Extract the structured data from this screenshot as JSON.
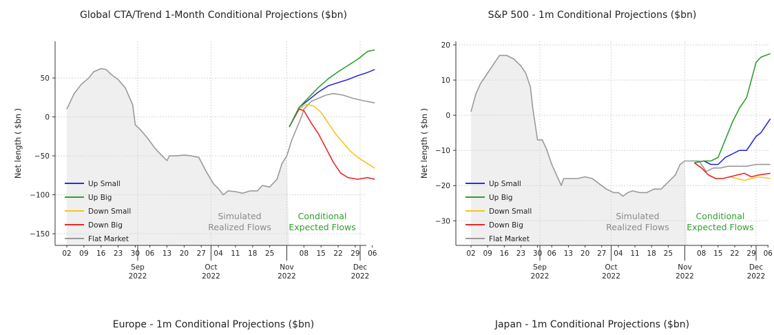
{
  "page": {
    "titles": [
      "Global CTA/Trend 1-Month Conditional Projections ($bn)",
      "S&P 500 - 1m Conditional Projections ($bn)",
      "Europe - 1m Conditional Projections ($bn)",
      "Japan - 1m Conditional Projections ($bn)"
    ]
  },
  "chart_data": [
    {
      "type": "line",
      "title": "Global CTA/Trend 1-Month Conditional Projections ($bn)",
      "ylabel": "Net length ( $bn )",
      "xlabel": "",
      "ylim": [
        -165,
        97
      ],
      "yticks": [
        50,
        0,
        -50,
        -100,
        -150
      ],
      "ytick_labels": [
        "50",
        "0",
        "−50",
        "−100",
        "−150"
      ],
      "x_day_range": [
        0,
        37
      ],
      "day_ticks": [
        {
          "day": 0,
          "label": "02"
        },
        {
          "day": 7,
          "label": "09"
        },
        {
          "day": 14,
          "label": "16"
        },
        {
          "day": 21,
          "label": "23"
        },
        {
          "day": 28,
          "label": "30"
        },
        {
          "day": 34,
          "label": "06"
        },
        {
          "day": 41,
          "label": "13"
        },
        {
          "day": 48,
          "label": "20"
        },
        {
          "day": 55,
          "label": "27"
        },
        {
          "day": 62,
          "label": "04"
        },
        {
          "day": 69,
          "label": "11"
        },
        {
          "day": 76,
          "label": "18"
        },
        {
          "day": 83,
          "label": "25"
        },
        {
          "day": 97,
          "label": "08"
        },
        {
          "day": 104,
          "label": "15"
        },
        {
          "day": 111,
          "label": "22"
        },
        {
          "day": 118,
          "label": "29"
        },
        {
          "day": 125,
          "label": "06"
        }
      ],
      "month_ticks": [
        {
          "day": 29,
          "label": "Sep",
          "year": "2022"
        },
        {
          "day": 59,
          "label": "Oct",
          "year": "2022"
        },
        {
          "day": 90,
          "label": "Nov",
          "year": "2022"
        },
        {
          "day": 120,
          "label": "Dec",
          "year": "2022"
        }
      ],
      "grid": true,
      "legend_position": "lower-left",
      "annotations": [
        {
          "lines": [
            "Simulated",
            "Realized Flows"
          ],
          "color": "grey"
        },
        {
          "lines": [
            "Conditional",
            "Expected Flows"
          ],
          "color": "green"
        }
      ],
      "realized_until_day": 91,
      "series": [
        {
          "name": "Up Small",
          "color": "#2b2bdd",
          "points": [
            [
              91,
              -13
            ],
            [
              95,
              12
            ],
            [
              99,
              22
            ],
            [
              103,
              32
            ],
            [
              107,
              40
            ],
            [
              111,
              44
            ],
            [
              115,
              48
            ],
            [
              119,
              53
            ],
            [
              123,
              57
            ],
            [
              126,
              61
            ]
          ]
        },
        {
          "name": "Up Big",
          "color": "#2ca02c",
          "points": [
            [
              91,
              -13
            ],
            [
              95,
              12
            ],
            [
              99,
              25
            ],
            [
              103,
              38
            ],
            [
              107,
              49
            ],
            [
              111,
              58
            ],
            [
              115,
              66
            ],
            [
              119,
              74
            ],
            [
              123,
              84
            ],
            [
              126,
              86
            ]
          ]
        },
        {
          "name": "Down Small",
          "color": "#f5c518",
          "points": [
            [
              91,
              -13
            ],
            [
              95,
              10
            ],
            [
              98,
              16
            ],
            [
              101,
              14
            ],
            [
              104,
              6
            ],
            [
              107,
              -8
            ],
            [
              110,
              -22
            ],
            [
              113,
              -33
            ],
            [
              116,
              -44
            ],
            [
              119,
              -52
            ],
            [
              122,
              -58
            ],
            [
              126,
              -66
            ]
          ]
        },
        {
          "name": "Down Big",
          "color": "#e8262b",
          "points": [
            [
              91,
              -13
            ],
            [
              95,
              10
            ],
            [
              97,
              8
            ],
            [
              100,
              -8
            ],
            [
              103,
              -22
            ],
            [
              106,
              -40
            ],
            [
              109,
              -58
            ],
            [
              112,
              -72
            ],
            [
              115,
              -78
            ],
            [
              119,
              -80
            ],
            [
              123,
              -78
            ],
            [
              126,
              -80
            ]
          ]
        },
        {
          "name": "Flat Market",
          "color": "#999999",
          "points": [
            [
              0,
              10
            ],
            [
              3,
              30
            ],
            [
              6,
              42
            ],
            [
              9,
              50
            ],
            [
              11,
              58
            ],
            [
              14,
              62
            ],
            [
              16,
              61
            ],
            [
              18,
              55
            ],
            [
              21,
              48
            ],
            [
              24,
              37
            ],
            [
              27,
              15
            ],
            [
              28,
              -10
            ],
            [
              30,
              -16
            ],
            [
              33,
              -27
            ],
            [
              36,
              -40
            ],
            [
              39,
              -50
            ],
            [
              41,
              -56
            ],
            [
              42,
              -50
            ],
            [
              45,
              -50
            ],
            [
              48,
              -49
            ],
            [
              51,
              -50
            ],
            [
              54,
              -52
            ],
            [
              57,
              -70
            ],
            [
              60,
              -86
            ],
            [
              62,
              -92
            ],
            [
              64,
              -100
            ],
            [
              66,
              -95
            ],
            [
              69,
              -96
            ],
            [
              72,
              -98
            ],
            [
              75,
              -95
            ],
            [
              78,
              -95
            ],
            [
              80,
              -88
            ],
            [
              83,
              -90
            ],
            [
              86,
              -80
            ],
            [
              88,
              -60
            ],
            [
              90,
              -50
            ],
            [
              92,
              -30
            ],
            [
              94,
              -15
            ],
            [
              96,
              0
            ],
            [
              97,
              10
            ],
            [
              100,
              20
            ],
            [
              103,
              24
            ],
            [
              106,
              28
            ],
            [
              109,
              30
            ],
            [
              113,
              28
            ],
            [
              117,
              24
            ],
            [
              121,
              21
            ],
            [
              126,
              18
            ]
          ]
        }
      ]
    },
    {
      "type": "line",
      "title": "S&P 500 - 1m Conditional Projections ($bn)",
      "ylabel": "Net length ( $bn )",
      "xlabel": "",
      "ylim": [
        -37,
        21
      ],
      "yticks": [
        20,
        10,
        0,
        -10,
        -20,
        -30
      ],
      "ytick_labels": [
        "20",
        "10",
        "0",
        "−10",
        "−20",
        "−30"
      ],
      "day_ticks": [
        {
          "day": 0,
          "label": "02"
        },
        {
          "day": 7,
          "label": "09"
        },
        {
          "day": 14,
          "label": "16"
        },
        {
          "day": 21,
          "label": "23"
        },
        {
          "day": 28,
          "label": "30"
        },
        {
          "day": 34,
          "label": "06"
        },
        {
          "day": 41,
          "label": "13"
        },
        {
          "day": 48,
          "label": "20"
        },
        {
          "day": 55,
          "label": "27"
        },
        {
          "day": 62,
          "label": "04"
        },
        {
          "day": 69,
          "label": "11"
        },
        {
          "day": 76,
          "label": "18"
        },
        {
          "day": 83,
          "label": "25"
        },
        {
          "day": 97,
          "label": "08"
        },
        {
          "day": 104,
          "label": "15"
        },
        {
          "day": 111,
          "label": "22"
        },
        {
          "day": 118,
          "label": "29"
        },
        {
          "day": 125,
          "label": "06"
        }
      ],
      "month_ticks": [
        {
          "day": 29,
          "label": "Sep",
          "year": "2022"
        },
        {
          "day": 59,
          "label": "Oct",
          "year": "2022"
        },
        {
          "day": 90,
          "label": "Nov",
          "year": "2022"
        },
        {
          "day": 120,
          "label": "Dec",
          "year": "2022"
        }
      ],
      "grid": true,
      "legend_position": "lower-left",
      "annotations": [
        {
          "lines": [
            "Simulated",
            "Realized Flows"
          ],
          "color": "grey"
        },
        {
          "lines": [
            "Conditional",
            "Expected Flows"
          ],
          "color": "green"
        }
      ],
      "realized_until_day": 91,
      "series": [
        {
          "name": "Up Small",
          "color": "#2b2bdd",
          "points": [
            [
              94,
              -13.5
            ],
            [
              98,
              -13
            ],
            [
              101,
              -14
            ],
            [
              104,
              -14
            ],
            [
              107,
              -12
            ],
            [
              110,
              -11
            ],
            [
              113,
              -10
            ],
            [
              116,
              -10
            ],
            [
              118,
              -8
            ],
            [
              120,
              -6
            ],
            [
              122,
              -5
            ],
            [
              124,
              -3
            ],
            [
              126,
              -1
            ]
          ]
        },
        {
          "name": "Up Big",
          "color": "#2ca02c",
          "points": [
            [
              94,
              -13.5
            ],
            [
              98,
              -13
            ],
            [
              101,
              -13
            ],
            [
              104,
              -12
            ],
            [
              107,
              -7
            ],
            [
              110,
              -2
            ],
            [
              113,
              2
            ],
            [
              116,
              5
            ],
            [
              118,
              10
            ],
            [
              120,
              15
            ],
            [
              122,
              16.5
            ],
            [
              124,
              17
            ],
            [
              126,
              17.5
            ]
          ]
        },
        {
          "name": "Down Small",
          "color": "#f5c518",
          "points": [
            [
              94,
              -13.5
            ],
            [
              97,
              -15
            ],
            [
              100,
              -17
            ],
            [
              103,
              -18
            ],
            [
              106,
              -18
            ],
            [
              109,
              -17.5
            ],
            [
              112,
              -18
            ],
            [
              115,
              -18.5
            ],
            [
              118,
              -18
            ],
            [
              121,
              -17.5
            ],
            [
              126,
              -18
            ]
          ]
        },
        {
          "name": "Down Big",
          "color": "#e8262b",
          "points": [
            [
              94,
              -13.5
            ],
            [
              97,
              -15
            ],
            [
              100,
              -17
            ],
            [
              103,
              -18
            ],
            [
              106,
              -18
            ],
            [
              109,
              -17.5
            ],
            [
              112,
              -17
            ],
            [
              115,
              -16.5
            ],
            [
              118,
              -17.5
            ],
            [
              121,
              -17
            ],
            [
              126,
              -16.5
            ]
          ]
        },
        {
          "name": "Flat Market",
          "color": "#999999",
          "points": [
            [
              0,
              1
            ],
            [
              2,
              6
            ],
            [
              4,
              9
            ],
            [
              6,
              11
            ],
            [
              8,
              13
            ],
            [
              10,
              15
            ],
            [
              12,
              17
            ],
            [
              15,
              17
            ],
            [
              18,
              16
            ],
            [
              21,
              14
            ],
            [
              23,
              12
            ],
            [
              25,
              8
            ],
            [
              26,
              2
            ],
            [
              28,
              -7
            ],
            [
              30,
              -7
            ],
            [
              32,
              -10
            ],
            [
              34,
              -14
            ],
            [
              36,
              -17
            ],
            [
              38,
              -20
            ],
            [
              39,
              -18
            ],
            [
              42,
              -18
            ],
            [
              45,
              -18
            ],
            [
              48,
              -17.5
            ],
            [
              51,
              -18
            ],
            [
              54,
              -19.5
            ],
            [
              57,
              -21
            ],
            [
              60,
              -22
            ],
            [
              62,
              -22
            ],
            [
              64,
              -23
            ],
            [
              66,
              -22
            ],
            [
              68,
              -21.5
            ],
            [
              71,
              -22
            ],
            [
              74,
              -22
            ],
            [
              77,
              -21
            ],
            [
              80,
              -21
            ],
            [
              83,
              -19
            ],
            [
              86,
              -17
            ],
            [
              88,
              -14
            ],
            [
              90,
              -13
            ],
            [
              93,
              -13
            ],
            [
              96,
              -13
            ],
            [
              99,
              -16
            ],
            [
              102,
              -15
            ],
            [
              105,
              -15
            ],
            [
              108,
              -14.5
            ],
            [
              112,
              -14.5
            ],
            [
              116,
              -14.5
            ],
            [
              120,
              -14
            ],
            [
              126,
              -14
            ]
          ]
        }
      ]
    }
  ]
}
